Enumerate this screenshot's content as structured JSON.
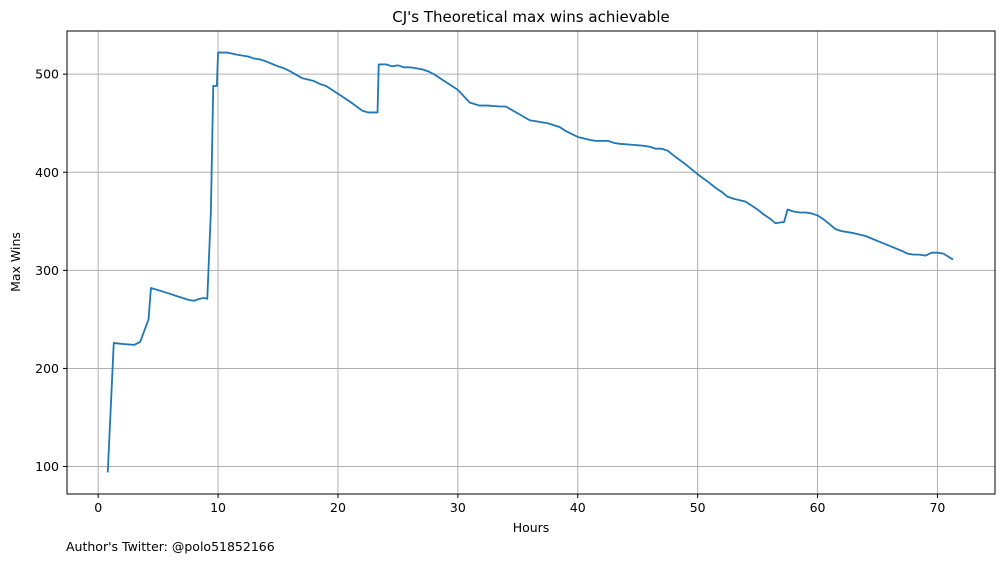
{
  "chart_data": {
    "type": "line",
    "title": "CJ's Theoretical max wins achievable",
    "xlabel": "Hours",
    "ylabel": "Max Wins",
    "xlim": [
      -2.6,
      74.8
    ],
    "ylim": [
      72,
      544
    ],
    "xticks": [
      0,
      10,
      20,
      30,
      40,
      50,
      60,
      70
    ],
    "yticks": [
      100,
      200,
      300,
      400,
      500
    ],
    "grid": true,
    "line_color": "#1f77b4",
    "series": [
      {
        "x": [
          0.8,
          1.3,
          2.0,
          3.0,
          3.5,
          4.2,
          4.4,
          5.5,
          6.5,
          7.5,
          8.0,
          8.2,
          8.8,
          9.1,
          9.4,
          9.6,
          9.9,
          10.0,
          10.8,
          11.5,
          12.0,
          12.5,
          13.0,
          13.5,
          14.0,
          15.0,
          15.5,
          16.0,
          17.0,
          18.0,
          18.5,
          19.0,
          20.0,
          21.0,
          22.0,
          22.5,
          23.3,
          23.4,
          24.0,
          24.5,
          25.0,
          25.5,
          26.0,
          26.5,
          27.0,
          27.5,
          28.0,
          28.5,
          29.0,
          30.0,
          31.0,
          31.8,
          32.5,
          33.5,
          34.0,
          35.0,
          36.0,
          36.5,
          37.5,
          38.5,
          39.0,
          40.0,
          41.0,
          41.5,
          42.5,
          43.0,
          43.5,
          44.5,
          45.5,
          46.0,
          46.5,
          47.0,
          47.5,
          48.0,
          49.0,
          50.0,
          51.0,
          51.5,
          52.0,
          52.5,
          53.0,
          54.0,
          55.0,
          55.5,
          56.0,
          56.5,
          57.0,
          57.2,
          57.5,
          58.0,
          58.5,
          59.0,
          59.5,
          60.0,
          60.5,
          61.0,
          61.5,
          62.0,
          63.0,
          64.0,
          65.0,
          66.0,
          67.0,
          67.5,
          68.0,
          68.5,
          69.0,
          69.5,
          70.0,
          70.5,
          71.3
        ],
        "y": [
          94,
          226,
          225,
          224,
          227,
          250,
          282,
          278,
          274,
          270,
          269,
          270,
          272,
          271,
          360,
          488,
          488,
          522,
          522,
          520,
          519,
          518,
          516,
          515,
          513,
          508,
          506,
          503,
          496,
          493,
          490,
          488,
          480,
          472,
          463,
          461,
          461,
          510,
          510,
          508,
          509,
          507,
          507,
          506,
          505,
          503,
          500,
          496,
          492,
          484,
          471,
          468,
          468,
          467,
          467,
          460,
          453,
          452,
          450,
          446,
          442,
          436,
          433,
          432,
          432,
          430,
          429,
          428,
          427,
          426,
          424,
          424,
          422,
          417,
          408,
          398,
          389,
          384,
          380,
          375,
          373,
          370,
          362,
          357,
          353,
          348,
          349,
          349,
          362,
          360,
          359,
          359,
          358,
          356,
          352,
          347,
          342,
          340,
          338,
          335,
          330,
          325,
          320,
          317,
          316,
          316,
          315,
          318,
          318,
          317,
          311
        ]
      }
    ]
  },
  "footer": {
    "text": "Author's Twitter: @polo51852166"
  }
}
